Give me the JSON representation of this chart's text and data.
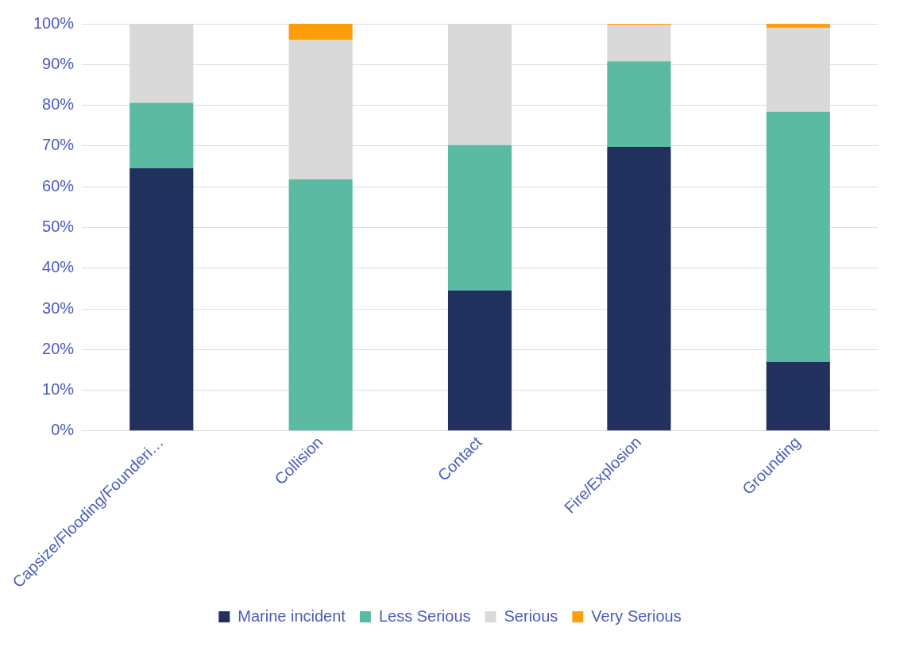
{
  "chart_data": {
    "type": "bar",
    "stacked": true,
    "categories": [
      "Capsize/Flooding/Founderi…",
      "Collision",
      "Contact",
      "Fire/Explosion",
      "Grounding"
    ],
    "series": [
      {
        "name": "Marine incident",
        "color": "#22305e",
        "values": [
          64.5,
          0,
          34.5,
          69.8,
          17
        ]
      },
      {
        "name": "Less Serious",
        "color": "#5bbaa2",
        "values": [
          16.1,
          61.8,
          35.7,
          21,
          61.4
        ]
      },
      {
        "name": "Serious",
        "color": "#d9d9d9",
        "values": [
          19.4,
          34.2,
          29.8,
          8.9,
          20.6
        ]
      },
      {
        "name": "Very Serious",
        "color": "#ff9e0b",
        "values": [
          0,
          4,
          0,
          0.3,
          1
        ]
      }
    ],
    "ylim": [
      0,
      100
    ],
    "yticks": [
      {
        "value": 0,
        "label": "0%"
      },
      {
        "value": 10,
        "label": "10%"
      },
      {
        "value": 20,
        "label": "20%"
      },
      {
        "value": 30,
        "label": "30%"
      },
      {
        "value": 40,
        "label": "40%"
      },
      {
        "value": 50,
        "label": "50%"
      },
      {
        "value": 60,
        "label": "60%"
      },
      {
        "value": 70,
        "label": "70%"
      },
      {
        "value": 80,
        "label": "80%"
      },
      {
        "value": 90,
        "label": "90%"
      },
      {
        "value": 100,
        "label": "100%"
      }
    ],
    "grid": "y",
    "legend": "bottom"
  }
}
